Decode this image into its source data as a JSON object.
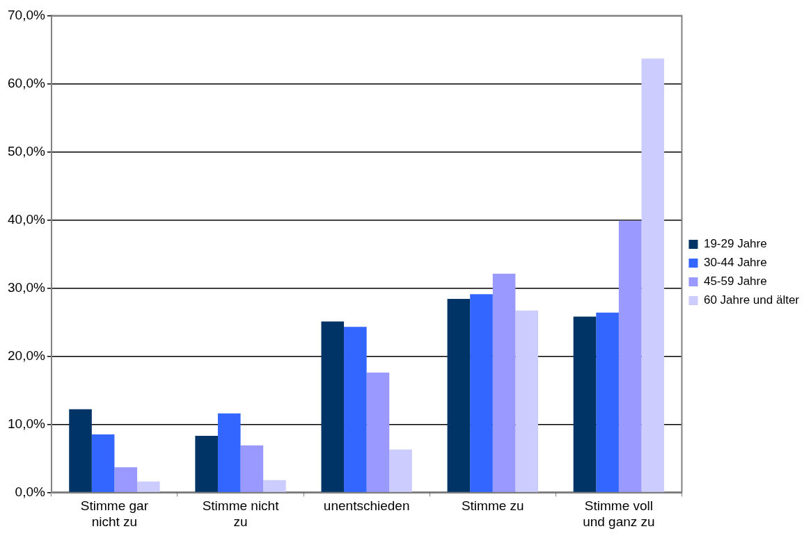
{
  "chart_data": {
    "type": "bar",
    "categories": [
      "Stimme gar nicht zu",
      "Stimme nicht zu",
      "unentschieden",
      "Stimme zu",
      "Stimme voll und ganz zu"
    ],
    "series": [
      {
        "name": "19-29 Jahre",
        "color": "#003366",
        "values": [
          12.2,
          8.3,
          25.1,
          28.4,
          25.8
        ]
      },
      {
        "name": "30-44 Jahre",
        "color": "#3366ff",
        "values": [
          8.5,
          11.6,
          24.3,
          29.1,
          26.4
        ]
      },
      {
        "name": "45-59 Jahre",
        "color": "#9999ff",
        "values": [
          3.7,
          6.9,
          17.6,
          32.1,
          39.9
        ]
      },
      {
        "name": "60 Jahre und älter",
        "color": "#ccccff",
        "values": [
          1.6,
          1.8,
          6.3,
          26.7,
          63.7
        ]
      }
    ],
    "ylim": [
      0,
      70
    ],
    "yticks": [
      {
        "value": 0,
        "label": "0,0%"
      },
      {
        "value": 10,
        "label": "10,0%"
      },
      {
        "value": 20,
        "label": "20,0%"
      },
      {
        "value": 30,
        "label": "30,0%"
      },
      {
        "value": 40,
        "label": "40,0%"
      },
      {
        "value": 50,
        "label": "50,0%"
      },
      {
        "value": 60,
        "label": "60,0%"
      },
      {
        "value": 70,
        "label": "70,0%"
      }
    ],
    "grid": "y",
    "legend": "right"
  }
}
